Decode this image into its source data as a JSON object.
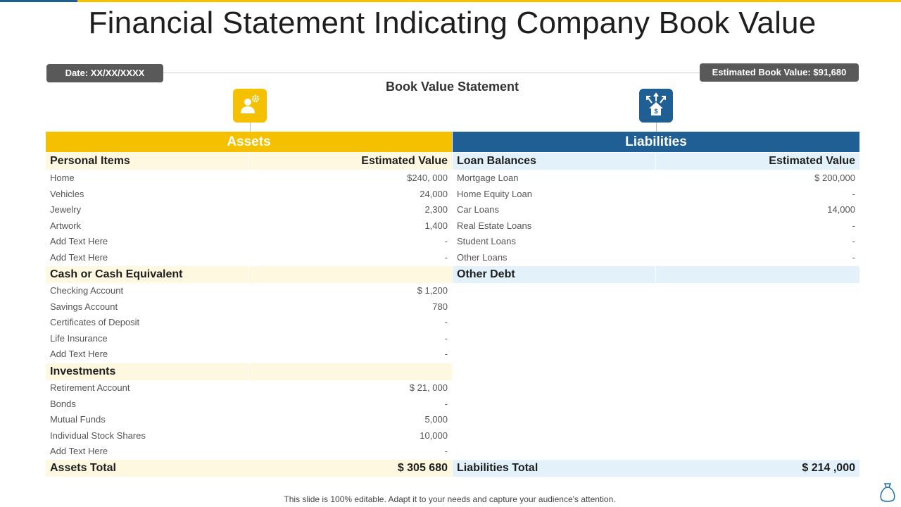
{
  "title": "Financial Statement Indicating Company Book Value",
  "date_label": "Date: XX/XX/XXXX",
  "estimated_book_value_label": "Estimated Book Value: $91,680",
  "subtitle": "Book Value Statement",
  "icons": {
    "assets": "user-gear-icon",
    "liabilities": "house-dollar-arrows-icon",
    "corner": "money-bag-icon"
  },
  "colors": {
    "assets": "#f5c000",
    "liabilities": "#1f5f94",
    "assets_tint": "#fff8e1",
    "liabilities_tint": "#e3f1fb"
  },
  "assets": {
    "heading": "Assets",
    "sections": [
      {
        "name": "Personal Items",
        "value_header": "Estimated Value",
        "items": [
          {
            "label": "Home",
            "value": "$240, 000"
          },
          {
            "label": "Vehicles",
            "value": "24,000"
          },
          {
            "label": "Jewelry",
            "value": "2,300"
          },
          {
            "label": "Artwork",
            "value": "1,400"
          },
          {
            "label": "Add Text Here",
            "value": "-"
          },
          {
            "label": "Add Text Here",
            "value": "-"
          }
        ]
      },
      {
        "name": "Cash or Cash Equivalent",
        "value_header": "",
        "items": [
          {
            "label": "Checking Account",
            "value": "$ 1,200"
          },
          {
            "label": "Savings  Account",
            "value": "780"
          },
          {
            "label": "Certificates of Deposit",
            "value": "-"
          },
          {
            "label": "Life Insurance",
            "value": "-"
          },
          {
            "label": "Add Text Here",
            "value": "-"
          }
        ]
      },
      {
        "name": "Investments",
        "value_header": "",
        "items": [
          {
            "label": "Retirement  Account",
            "value": "$ 21, 000"
          },
          {
            "label": "Bonds",
            "value": "-"
          },
          {
            "label": "Mutual Funds",
            "value": "5,000"
          },
          {
            "label": "Individual  Stock Shares",
            "value": "10,000"
          },
          {
            "label": "Add Text Here",
            "value": "-"
          }
        ]
      }
    ],
    "total_label": "Assets Total",
    "total_value": "$ 305 680"
  },
  "liabilities": {
    "heading": "Liabilities",
    "sections": [
      {
        "name": "Loan Balances",
        "value_header": "Estimated Value",
        "items": [
          {
            "label": "Mortgage Loan",
            "value": "$ 200,000"
          },
          {
            "label": "Home Equity Loan",
            "value": "-"
          },
          {
            "label": "Car Loans",
            "value": "14,000"
          },
          {
            "label": "Real Estate Loans",
            "value": "-"
          },
          {
            "label": "Student Loans",
            "value": "-"
          },
          {
            "label": "Other Loans",
            "value": "-"
          }
        ]
      },
      {
        "name": "Other Debt",
        "value_header": "",
        "items": []
      }
    ],
    "total_label": "Liabilities  Total",
    "total_value": "$ 214 ,000"
  },
  "footer": "This slide is 100% editable. Adapt it to your needs and capture your audience's attention."
}
